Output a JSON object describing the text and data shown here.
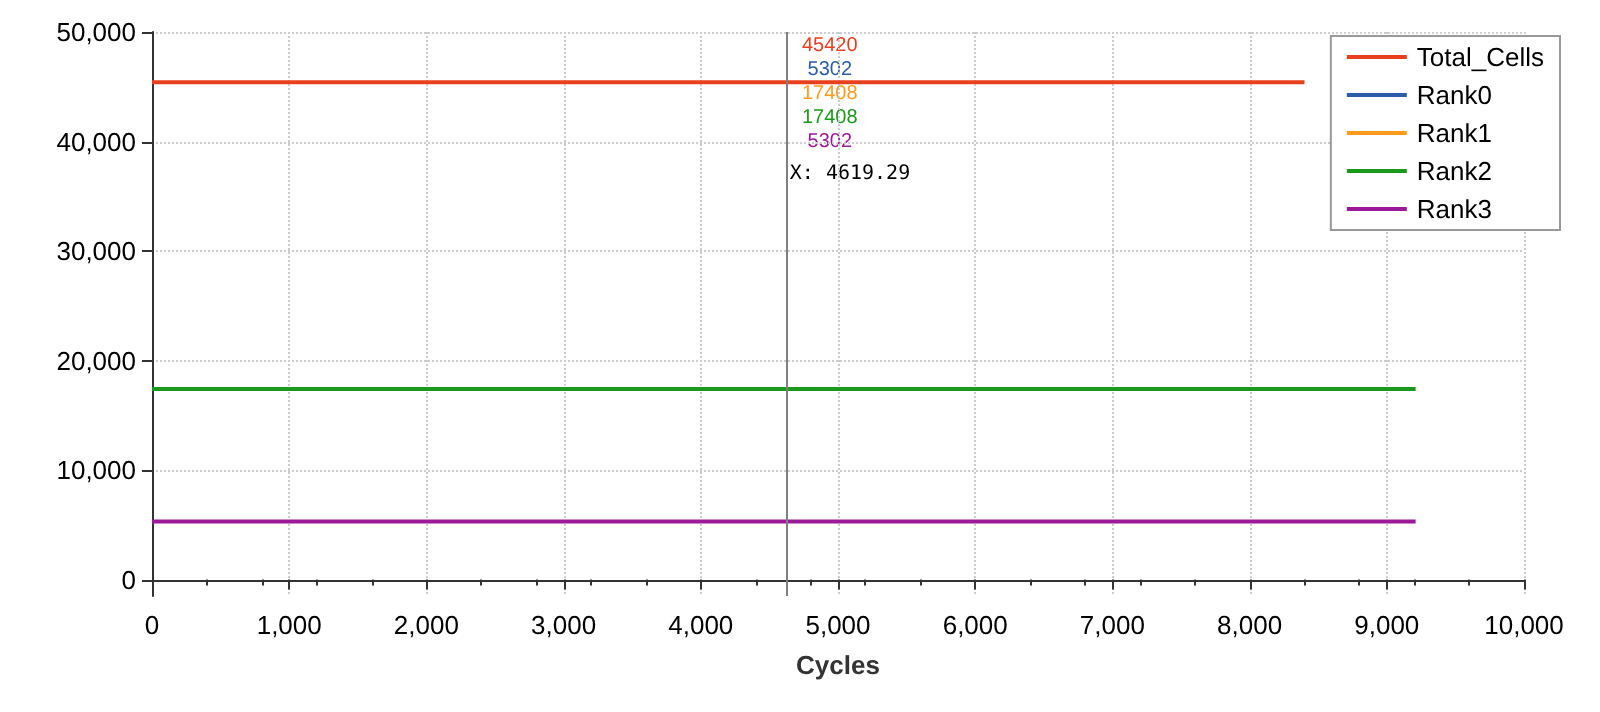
{
  "chart_data": {
    "type": "line",
    "xlabel": "Cycles",
    "x": [
      0,
      9210
    ],
    "series": [
      {
        "name": "Total_Cells",
        "color": "#e8401c",
        "x": [
          0,
          8400
        ],
        "values": [
          45420,
          45420
        ]
      },
      {
        "name": "Rank0",
        "color": "#2a5caa",
        "values": [
          null,
          null
        ]
      },
      {
        "name": "Rank1",
        "color": "#ff9a1a",
        "values": [
          null,
          null
        ]
      },
      {
        "name": "Rank2",
        "color": "#1a9a1a",
        "values": [
          17408,
          17408
        ]
      },
      {
        "name": "Rank3",
        "color": "#9a1a9a",
        "values": [
          5302,
          5302
        ]
      }
    ],
    "xlim": [
      0,
      10000
    ],
    "xticks": [
      {
        "value": 0,
        "label": "0"
      },
      {
        "value": 1000,
        "label": "1,000"
      },
      {
        "value": 2000,
        "label": "2,000"
      },
      {
        "value": 3000,
        "label": "3,000"
      },
      {
        "value": 4000,
        "label": "4,000"
      },
      {
        "value": 5000,
        "label": "5,000"
      },
      {
        "value": 6000,
        "label": "6,000"
      },
      {
        "value": 7000,
        "label": "7,000"
      },
      {
        "value": 8000,
        "label": "8,000"
      },
      {
        "value": 9000,
        "label": "9,000"
      },
      {
        "value": 10000,
        "label": "10,000"
      }
    ],
    "ylim": [
      -1500,
      50000
    ],
    "yticks": [
      {
        "value": 0,
        "label": "0"
      },
      {
        "value": 10000,
        "label": "10,000"
      },
      {
        "value": 20000,
        "label": "20,000"
      },
      {
        "value": 30000,
        "label": "30,000"
      },
      {
        "value": 40000,
        "label": "40,000"
      },
      {
        "value": 50000,
        "label": "50,000"
      }
    ],
    "ref_lines": [
      {
        "axis": "x",
        "value": 4619.29,
        "label": "X: 4619.29",
        "color": "#808080"
      }
    ],
    "annotations": [
      "45420",
      "5302",
      "17408",
      "17408",
      "5302"
    ],
    "grid": true,
    "legend": "top right",
    "marker": "none",
    "line_style": "solid"
  }
}
